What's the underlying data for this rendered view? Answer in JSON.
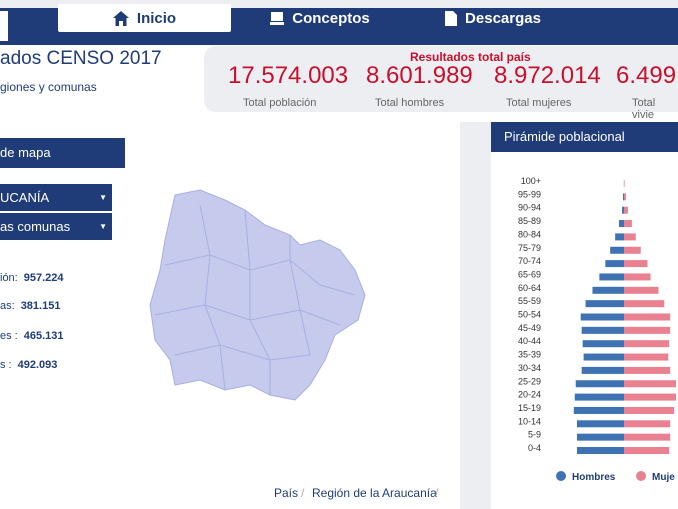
{
  "nav": {
    "items": [
      "Inicio",
      "Conceptos",
      "Descargas"
    ]
  },
  "header": {
    "title": "ados CENSO 2017",
    "subtitle": "giones y comunas"
  },
  "totals": {
    "title": "Resultados total país",
    "items": [
      {
        "value": "17.574.003",
        "label": "Total población"
      },
      {
        "value": "8.601.989",
        "label": "Total hombres"
      },
      {
        "value": "8.972.014",
        "label": "Total mujeres"
      },
      {
        "value": "6.499.",
        "label": "Total vivie"
      }
    ]
  },
  "map_panel": {
    "title": "de mapa",
    "region_select": "UCANÍA",
    "commune_select": "as comunas",
    "stats": [
      {
        "label": "ión:",
        "value": "957.224"
      },
      {
        "label": "as:",
        "value": "381.151"
      },
      {
        "label": "es :",
        "value": "465.131"
      },
      {
        "label": "s :",
        "value": "492.093"
      }
    ]
  },
  "breadcrumb": [
    "País",
    "Región de la Araucanía"
  ],
  "chart_data": {
    "type": "pyramid",
    "title": "Pirámide poblacional",
    "categories": [
      "100+",
      "95-99",
      "90-94",
      "85-89",
      "80-84",
      "75-79",
      "70-74",
      "65-69",
      "60-64",
      "55-59",
      "50-54",
      "45-49",
      "40-44",
      "35-39",
      "30-34",
      "25-29",
      "20-24",
      "15-19",
      "10-14",
      "5-9",
      "0-4"
    ],
    "series": [
      {
        "name": "Hombres",
        "color": "#3f72b3",
        "values": [
          100,
          700,
          1400,
          3600,
          6400,
          10000,
          13500,
          17800,
          22800,
          27800,
          31300,
          30600,
          29900,
          29200,
          30600,
          34900,
          35600,
          36300,
          34000,
          34000,
          34000
        ]
      },
      {
        "name": "Muje",
        "color": "#ea8191",
        "values": [
          400,
          1400,
          2800,
          5700,
          8500,
          12100,
          17000,
          19200,
          24900,
          29100,
          33400,
          33400,
          32700,
          32000,
          33400,
          37600,
          37600,
          36200,
          33400,
          33400,
          32700
        ]
      }
    ]
  }
}
